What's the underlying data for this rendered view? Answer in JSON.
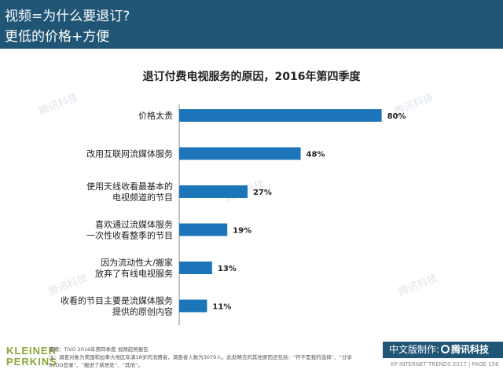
{
  "header": {
    "line1": "视频=为什么要退订?",
    "line2": "更低的价格+方便"
  },
  "chart_data": {
    "type": "bar",
    "orientation": "horizontal",
    "title": "退订付费电视服务的原因，2016年第四季度",
    "categories": [
      [
        "价格太贵"
      ],
      [
        "改用互联网流媒体服务"
      ],
      [
        "使用天线收看最基本的",
        "电视频道的节目"
      ],
      [
        "喜欢通过流媒体服务",
        "一次性收看整季的节目"
      ],
      [
        "因为流动性大/搬家",
        "放弃了有线电视服务"
      ],
      [
        "收看的节目主要是流媒体服务",
        "提供的原创内容"
      ]
    ],
    "values": [
      80,
      48,
      27,
      19,
      13,
      11
    ],
    "value_labels": [
      "80%",
      "48%",
      "27%",
      "19%",
      "13%",
      "11%"
    ],
    "xlim": [
      0,
      100
    ],
    "bar_color": "#1b75b8"
  },
  "watermark": "腾讯科技",
  "footer": {
    "logo_line1": "KLEINER",
    "logo_line2": "PERKINS",
    "source": "来源：TiVO 2016年第四季度 视频趋势报告",
    "note": "注：调查对象为美国和加拿大地区年满18岁的消费者，调查者人数为3079人。此处略去的其他原因还包括：“怀不是我的选择”、“分享SVOD登录”、“搬进了新居处”、“其他”。",
    "badge_prefix": "中文版制作:",
    "badge_brand": "腾讯科技",
    "page_info": "KP INTERNET TRENDS 2017  |  PAGE 156"
  },
  "colors": {
    "header_bg": "#215575",
    "bar": "#1b75b8",
    "logo": "#8aa63b"
  }
}
